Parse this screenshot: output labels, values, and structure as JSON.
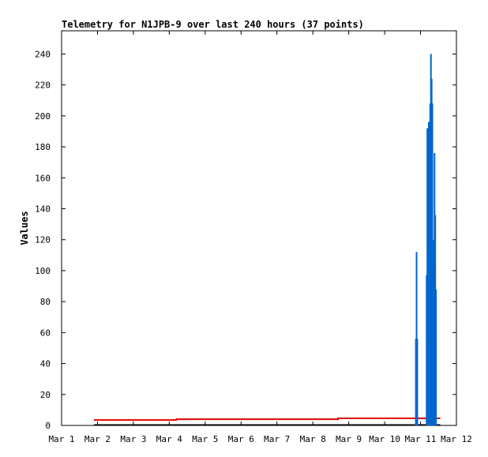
{
  "chart_data": {
    "type": "line",
    "title": "Telemetry for N1JPB-9 over last 240 hours (37 points)",
    "xlabel": "",
    "ylabel": "Values",
    "x_ticks": [
      "Mar 1",
      "Mar 2",
      "Mar 3",
      "Mar 4",
      "Mar 5",
      "Mar 6",
      "Mar 7",
      "Mar 8",
      "Mar 9",
      "Mar 10",
      "Mar 11",
      "Mar 12"
    ],
    "y_ticks": [
      0,
      20,
      40,
      60,
      80,
      100,
      120,
      140,
      160,
      180,
      200,
      220,
      240
    ],
    "xlim": [
      0,
      11
    ],
    "ylim": [
      0,
      255
    ],
    "grid": false,
    "legend": "none",
    "series": [
      {
        "color": "#e00000",
        "style": "line",
        "points": [
          [
            0.9,
            3.5
          ],
          [
            3.2,
            3.5
          ],
          [
            3.2,
            4.0
          ],
          [
            7.7,
            4.0
          ],
          [
            7.7,
            4.6
          ],
          [
            10.55,
            4.6
          ]
        ]
      },
      {
        "color": "#0066cc",
        "style": "spikes",
        "points": [
          [
            9.87,
            56
          ],
          [
            9.89,
            112
          ],
          [
            9.91,
            56
          ],
          [
            10.17,
            97
          ],
          [
            10.19,
            192
          ],
          [
            10.21,
            160
          ],
          [
            10.23,
            196
          ],
          [
            10.25,
            104
          ],
          [
            10.27,
            208
          ],
          [
            10.29,
            240
          ],
          [
            10.31,
            224
          ],
          [
            10.33,
            208
          ],
          [
            10.35,
            120
          ],
          [
            10.37,
            104
          ],
          [
            10.39,
            176
          ],
          [
            10.41,
            136
          ],
          [
            10.43,
            88
          ]
        ]
      }
    ]
  }
}
